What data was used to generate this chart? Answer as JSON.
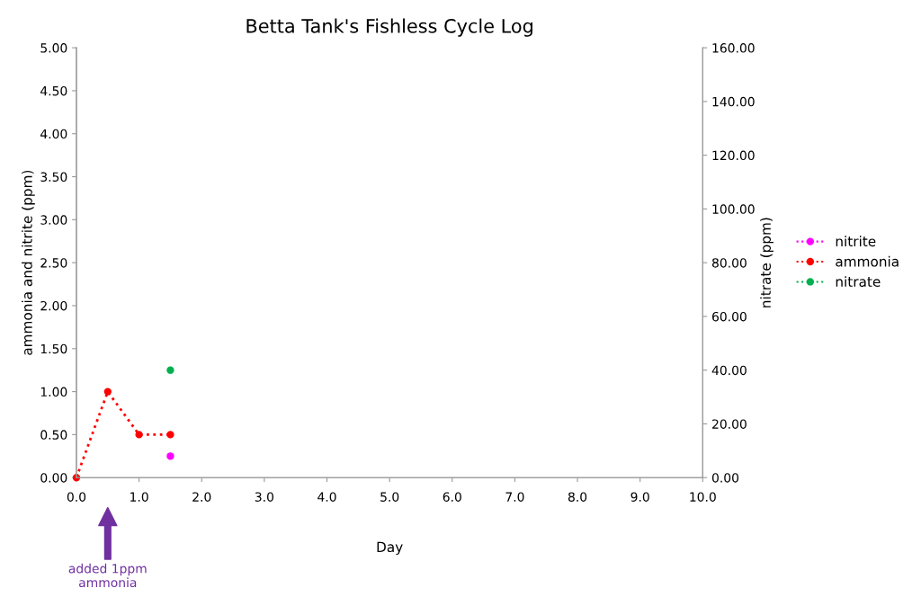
{
  "chart_data": {
    "type": "line",
    "title": "Betta Tank's Fishless Cycle Log",
    "xlabel": "Day",
    "ylabel": "ammonia and nitrite (ppm)",
    "y2label": "nitrate (ppm)",
    "series": [
      {
        "name": "nitrite",
        "color": "#ff00ff",
        "x": [
          1.5
        ],
        "values": [
          0.25
        ]
      },
      {
        "name": "ammonia",
        "color": "#ff0000",
        "x": [
          0,
          0.5,
          1.0,
          1.5
        ],
        "values": [
          0,
          1.0,
          0.5,
          0.5
        ]
      },
      {
        "name": "nitrate",
        "color": "#00b050",
        "x": [
          1.5
        ],
        "values": [
          40
        ],
        "axis": "y2"
      }
    ],
    "xlim": [
      0,
      10
    ],
    "xticks": [
      {
        "value": 0,
        "label": "0.0"
      },
      {
        "value": 1,
        "label": "1.0"
      },
      {
        "value": 2,
        "label": "2.0"
      },
      {
        "value": 3,
        "label": "3.0"
      },
      {
        "value": 4,
        "label": "4.0"
      },
      {
        "value": 5,
        "label": "5.0"
      },
      {
        "value": 6,
        "label": "6.0"
      },
      {
        "value": 7,
        "label": "7.0"
      },
      {
        "value": 8,
        "label": "8.0"
      },
      {
        "value": 9,
        "label": "9.0"
      },
      {
        "value": 10,
        "label": "10.0"
      }
    ],
    "ylim": [
      0,
      5
    ],
    "yticks": [
      {
        "value": 0,
        "label": "0.00"
      },
      {
        "value": 0.5,
        "label": "0.50"
      },
      {
        "value": 1,
        "label": "1.00"
      },
      {
        "value": 1.5,
        "label": "1.50"
      },
      {
        "value": 2,
        "label": "2.00"
      },
      {
        "value": 2.5,
        "label": "2.50"
      },
      {
        "value": 3,
        "label": "3.00"
      },
      {
        "value": 3.5,
        "label": "3.50"
      },
      {
        "value": 4,
        "label": "4.00"
      },
      {
        "value": 4.5,
        "label": "4.50"
      },
      {
        "value": 5,
        "label": "5.00"
      }
    ],
    "y2lim": [
      0,
      160
    ],
    "y2ticks": [
      {
        "value": 0,
        "label": "0.00"
      },
      {
        "value": 20,
        "label": "20.00"
      },
      {
        "value": 40,
        "label": "40.00"
      },
      {
        "value": 60,
        "label": "60.00"
      },
      {
        "value": 80,
        "label": "80.00"
      },
      {
        "value": 100,
        "label": "100.00"
      },
      {
        "value": 120,
        "label": "120.00"
      },
      {
        "value": 140,
        "label": "140.00"
      },
      {
        "value": 160,
        "label": "160.00"
      }
    ],
    "annotations": [
      "added 1ppm\nammonia"
    ],
    "grid": false,
    "legend": "right",
    "marker": "circle",
    "line_style": "dotted"
  }
}
